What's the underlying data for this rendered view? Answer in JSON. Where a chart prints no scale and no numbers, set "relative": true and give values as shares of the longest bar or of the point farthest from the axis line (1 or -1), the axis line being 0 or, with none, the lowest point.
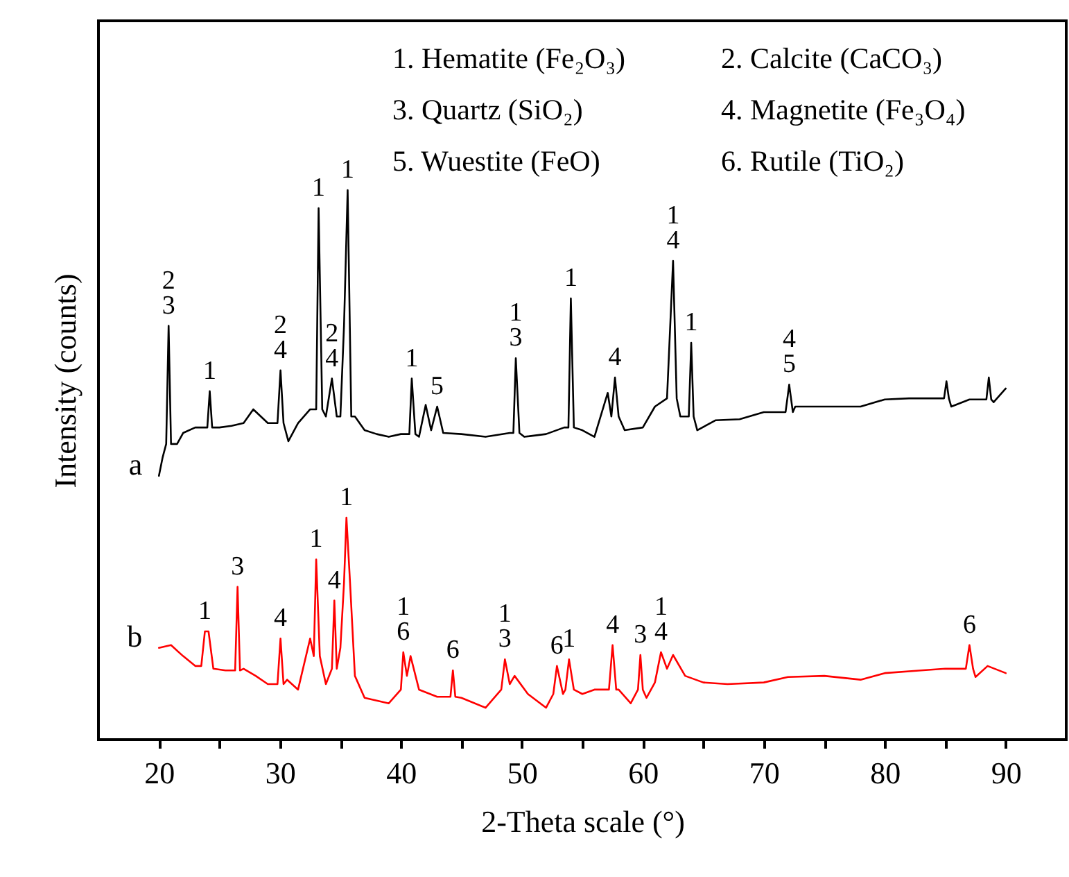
{
  "chart_data": {
    "type": "line",
    "relative": true,
    "xlabel": "2-Theta scale (°)",
    "ylabel": "Intensity (counts)",
    "xlim": [
      15,
      95
    ],
    "xticks": [
      20,
      {
        "value": 25,
        "label": null
      },
      30,
      {
        "value": 35,
        "label": null
      },
      40,
      {
        "value": 45,
        "label": null
      },
      50,
      {
        "value": 55,
        "label": null
      },
      60,
      {
        "value": 65,
        "label": null
      },
      70,
      {
        "value": 75,
        "label": null
      },
      80,
      {
        "value": 85,
        "label": null
      },
      90
    ],
    "grid": false,
    "series": [
      {
        "name": "a",
        "color": "#000000",
        "x": [
          20,
          20.3,
          20.6,
          20.8,
          21.0,
          21.5,
          22,
          23,
          24.0,
          24.2,
          24.4,
          25,
          26,
          27,
          27.8,
          29,
          29.8,
          30.05,
          30.3,
          30.7,
          31.5,
          32.5,
          33.0,
          33.2,
          33.5,
          33.8,
          34.3,
          34.7,
          35.0,
          35.3,
          35.6,
          35.9,
          36.2,
          37,
          38,
          39,
          40,
          40.7,
          40.9,
          41.2,
          41.5,
          42.05,
          42.5,
          43.0,
          43.5,
          45,
          47,
          49,
          49.3,
          49.5,
          49.8,
          50.2,
          52,
          53.5,
          53.85,
          54.05,
          54.3,
          55,
          56,
          57.1,
          57.4,
          57.7,
          58.0,
          58.5,
          60,
          61,
          62.0,
          62.5,
          62.8,
          63.1,
          63.8,
          64.0,
          64.2,
          64.5,
          66,
          68,
          70,
          71.8,
          72.1,
          72.4,
          72.6,
          75,
          78,
          80,
          82,
          84.9,
          85.1,
          85.3,
          85.5,
          87,
          88.4,
          88.6,
          88.8,
          89,
          90
        ],
        "values": [
          0.48,
          0.513,
          0.538,
          0.753,
          0.538,
          0.538,
          0.558,
          0.568,
          0.568,
          0.634,
          0.568,
          0.568,
          0.571,
          0.576,
          0.601,
          0.576,
          0.576,
          0.672,
          0.576,
          0.543,
          0.576,
          0.601,
          0.601,
          0.967,
          0.601,
          0.588,
          0.657,
          0.588,
          0.588,
          0.753,
          1,
          0.588,
          0.588,
          0.563,
          0.556,
          0.551,
          0.556,
          0.556,
          0.657,
          0.556,
          0.551,
          0.609,
          0.563,
          0.606,
          0.558,
          0.556,
          0.551,
          0.558,
          0.558,
          0.694,
          0.558,
          0.551,
          0.556,
          0.568,
          0.568,
          0.803,
          0.568,
          0.563,
          0.551,
          0.631,
          0.588,
          0.659,
          0.588,
          0.563,
          0.568,
          0.606,
          0.621,
          0.871,
          0.621,
          0.588,
          0.588,
          0.722,
          0.588,
          0.563,
          0.581,
          0.583,
          0.596,
          0.596,
          0.646,
          0.596,
          0.606,
          0.606,
          0.606,
          0.619,
          0.621,
          0.621,
          0.652,
          0.621,
          0.606,
          0.619,
          0.619,
          0.659,
          0.619,
          0.614,
          0.639
        ]
      },
      {
        "name": "b",
        "color": "#ff0000",
        "x": [
          20,
          21,
          22,
          23,
          23.5,
          23.8,
          24.1,
          24.5,
          25.5,
          26.3,
          26.5,
          26.7,
          27,
          28,
          29,
          29.8,
          30.05,
          30.3,
          30.6,
          31.5,
          32.5,
          32.8,
          33.0,
          33.3,
          33.8,
          34.3,
          34.5,
          34.7,
          35.0,
          35.3,
          35.5,
          35.8,
          36.2,
          37,
          38,
          39,
          40.0,
          40.2,
          40.5,
          40.8,
          41.5,
          43,
          44.1,
          44.3,
          44.5,
          45,
          47,
          48.3,
          48.6,
          49.0,
          49.4,
          50.5,
          52,
          52.6,
          52.9,
          53.4,
          53.6,
          53.9,
          54.3,
          55,
          56,
          57.2,
          57.5,
          57.8,
          58,
          59,
          59.6,
          59.8,
          60.0,
          60.3,
          61.0,
          61.5,
          62.0,
          62.5,
          63.5,
          65,
          67,
          70,
          72,
          75,
          78,
          80,
          83,
          85,
          86.7,
          87.0,
          87.3,
          87.5,
          88.5,
          90
        ],
        "values": [
          0.167,
          0.172,
          0.152,
          0.134,
          0.134,
          0.197,
          0.197,
          0.129,
          0.126,
          0.126,
          0.278,
          0.126,
          0.129,
          0.116,
          0.101,
          0.101,
          0.184,
          0.101,
          0.109,
          0.091,
          0.184,
          0.152,
          0.328,
          0.152,
          0.101,
          0.129,
          0.253,
          0.129,
          0.167,
          0.285,
          0.404,
          0.285,
          0.116,
          0.076,
          0.071,
          0.066,
          0.091,
          0.159,
          0.116,
          0.152,
          0.091,
          0.078,
          0.078,
          0.126,
          0.078,
          0.076,
          0.058,
          0.091,
          0.146,
          0.101,
          0.116,
          0.083,
          0.058,
          0.083,
          0.134,
          0.083,
          0.091,
          0.146,
          0.091,
          0.083,
          0.091,
          0.091,
          0.172,
          0.091,
          0.091,
          0.066,
          0.091,
          0.154,
          0.091,
          0.076,
          0.104,
          0.159,
          0.129,
          0.154,
          0.116,
          0.104,
          0.101,
          0.104,
          0.114,
          0.116,
          0.109,
          0.121,
          0.126,
          0.129,
          0.129,
          0.172,
          0.129,
          0.114,
          0.134,
          0.121
        ]
      }
    ],
    "annotations": [
      "1. Hematite (Fe₂O₃)",
      "2. Calcite (CaCO₃)",
      "3. Quartz (SiO₂)",
      "4. Magnetite (Fe₃O₄)",
      "5. Wuestite (FeO)",
      "6. Rutile (TiO₂)",
      {
        "text": "2\n3",
        "x": 20.8,
        "y": 0.753
      },
      {
        "text": "1",
        "x": 24.2,
        "y": 0.634
      },
      {
        "text": "2\n4",
        "x": 30.05,
        "y": 0.672
      },
      {
        "text": "1",
        "x": 33.2,
        "y": 0.967
      },
      {
        "text": "1",
        "x": 35.6,
        "y": 1
      },
      {
        "text": "2\n4",
        "x": 34.3,
        "y": 0.657
      },
      {
        "text": "1",
        "x": 40.9,
        "y": 0.657
      },
      {
        "text": "5",
        "x": 43.0,
        "y": 0.606
      },
      {
        "text": "1\n3",
        "x": 49.5,
        "y": 0.694
      },
      {
        "text": "1",
        "x": 54.05,
        "y": 0.803
      },
      {
        "text": "4",
        "x": 57.7,
        "y": 0.659
      },
      {
        "text": "1\n4",
        "x": 62.5,
        "y": 0.871
      },
      {
        "text": "1",
        "x": 64.0,
        "y": 0.722
      },
      {
        "text": "4\n5",
        "x": 72.1,
        "y": 0.646
      },
      {
        "text": "1",
        "x": 23.8,
        "y": 0.197
      },
      {
        "text": "3",
        "x": 26.5,
        "y": 0.278
      },
      {
        "text": "4",
        "x": 30.05,
        "y": 0.184
      },
      {
        "text": "1",
        "x": 33.0,
        "y": 0.328
      },
      {
        "text": "4",
        "x": 34.5,
        "y": 0.253
      },
      {
        "text": "1",
        "x": 35.5,
        "y": 0.404
      },
      {
        "text": "1\n6",
        "x": 40.2,
        "y": 0.159
      },
      {
        "text": "6",
        "x": 44.3,
        "y": 0.126
      },
      {
        "text": "1\n3",
        "x": 48.6,
        "y": 0.146
      },
      {
        "text": "6",
        "x": 52.9,
        "y": 0.134
      },
      {
        "text": "1",
        "x": 53.9,
        "y": 0.146
      },
      {
        "text": "4",
        "x": 57.5,
        "y": 0.172
      },
      {
        "text": "3",
        "x": 59.8,
        "y": 0.154
      },
      {
        "text": "1\n4",
        "x": 61.5,
        "y": 0.159
      },
      {
        "text": "6",
        "x": 87.0,
        "y": 0.172
      }
    ]
  }
}
